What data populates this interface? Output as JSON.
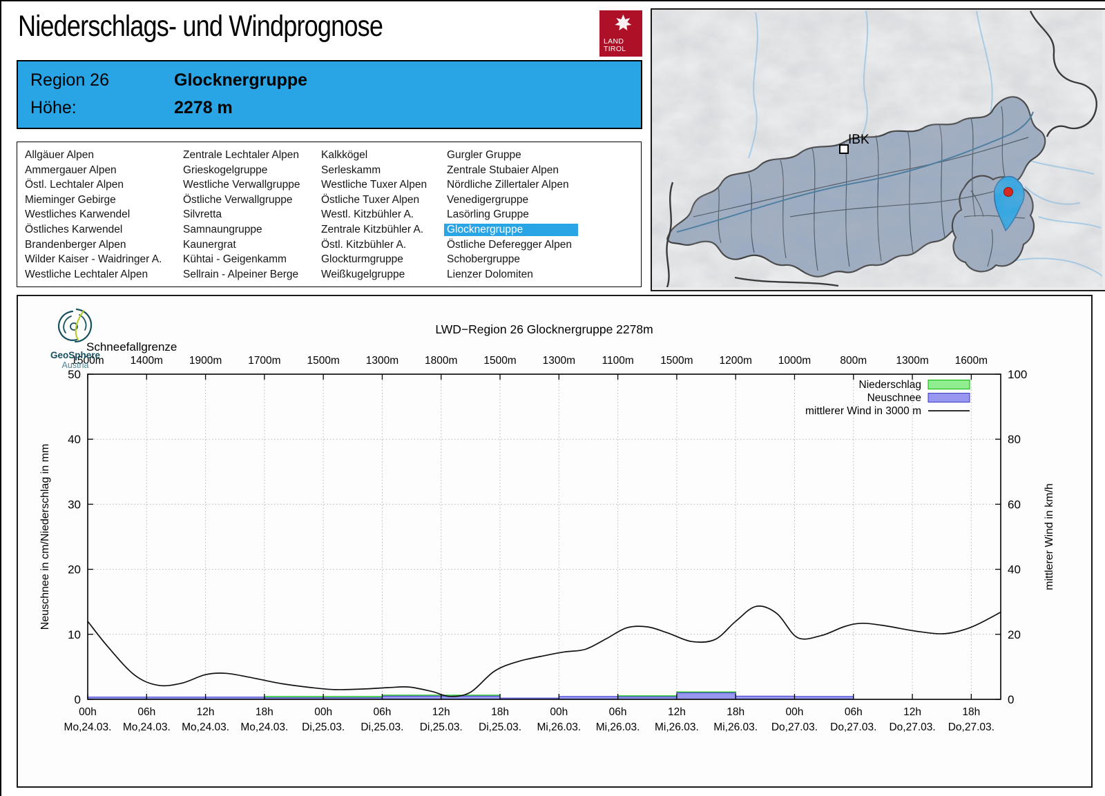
{
  "header": {
    "title": "Niederschlags- und Windprognose",
    "logo_land": "LAND",
    "logo_tirol": "TIROL"
  },
  "info_box": {
    "region_label": "Region 26",
    "region_name": "Glocknergruppe",
    "altitude_label": "Höhe:",
    "altitude_value": "2278 m"
  },
  "region_list": {
    "selected": "Glocknergruppe",
    "columns": [
      [
        "Allgäuer Alpen",
        "Ammergauer Alpen",
        "Östl. Lechtaler Alpen",
        "Mieminger Gebirge",
        "Westliches Karwendel",
        "Östliches Karwendel",
        "Brandenberger Alpen",
        "Wilder Kaiser - Waidringer A.",
        "Westliche Lechtaler Alpen"
      ],
      [
        "Zentrale Lechtaler Alpen",
        "Grieskogelgruppe",
        "Westliche Verwallgruppe",
        "Östliche Verwallgruppe",
        "Silvretta",
        "Samnaungruppe",
        "Kaunergrat",
        "Kühtai - Geigenkamm",
        "Sellrain - Alpeiner Berge"
      ],
      [
        "Kalkkögel",
        "Serleskamm",
        "Westliche Tuxer Alpen",
        "Östliche Tuxer Alpen",
        "Westl. Kitzbühler A.",
        "Zentrale Kitzbühler A.",
        "Östl. Kitzbühler A.",
        "Glockturmgruppe",
        "Weißkugelgruppe"
      ],
      [
        "Gurgler Gruppe",
        "Zentrale Stubaier Alpen",
        "Nördliche Zillertaler Alpen",
        "Venedigergruppe",
        "Lasörling Gruppe",
        "Glocknergruppe",
        "Östliche Deferegger Alpen",
        "Schobergruppe",
        "Lienzer Dolomiten"
      ]
    ]
  },
  "map": {
    "city_label": "IBK"
  },
  "branding": {
    "geosphere_line1": "GeoSphere",
    "geosphere_line2": "Austria"
  },
  "colors": {
    "accent_blue": "#29A5E5",
    "land_tirol_red": "#AE1127",
    "map_land": "#9DACC2",
    "map_selected": "#29A5E5",
    "marker_red": "#D42A20",
    "bar_green_fill": "#90EE90",
    "bar_green_border": "#00B400",
    "bar_blue_fill": "#9797EF",
    "bar_blue_border": "#3A3ACD"
  },
  "chart_data": {
    "type": "bar+line",
    "title": "LWD−Region 26 Glocknergruppe 2278m",
    "snowline_label": "Schneefallgrenze",
    "snowline_values": [
      "1500m",
      "1400m",
      "1900m",
      "1700m",
      "1500m",
      "1300m",
      "1800m",
      "1500m",
      "1300m",
      "1100m",
      "1500m",
      "1200m",
      "1000m",
      "800m",
      "1300m",
      "1600m"
    ],
    "x_tick_hours": [
      "00h",
      "06h",
      "12h",
      "18h",
      "00h",
      "06h",
      "12h",
      "18h",
      "00h",
      "06h",
      "12h",
      "18h",
      "00h",
      "06h",
      "12h",
      "18h"
    ],
    "x_tick_dates": [
      "Mo,24.03.",
      "Mo,24.03.",
      "Mo,24.03.",
      "Mo,24.03.",
      "Di,25.03.",
      "Di,25.03.",
      "Di,25.03.",
      "Di,25.03.",
      "Mi,26.03.",
      "Mi,26.03.",
      "Mi,26.03.",
      "Mi,26.03.",
      "Do,27.03.",
      "Do,27.03.",
      "Do,27.03.",
      "Do,27.03."
    ],
    "x_range_intervals": [
      0,
      15.5
    ],
    "ylabel_left": "Neuschnee in cm/Niederschlag in mm",
    "ylabel_right": "mittlerer Wind in km/h",
    "ylim_left": [
      0,
      50
    ],
    "ylim_right": [
      0,
      100
    ],
    "yticks_left": [
      0,
      10,
      20,
      30,
      40,
      50
    ],
    "yticks_right": [
      0,
      20,
      40,
      60,
      80,
      100
    ],
    "grid": true,
    "legend_position": "top-right",
    "legend": [
      {
        "label": "Niederschlag",
        "swatch": "bar-green"
      },
      {
        "label": "Neuschnee",
        "swatch": "bar-blue"
      },
      {
        "label": "mittlerer Wind in 3000 m",
        "swatch": "line-black"
      }
    ],
    "bars_niederschlag_mm": [
      0,
      0,
      0,
      0.45,
      0.45,
      0.65,
      0.65,
      0,
      0,
      0.55,
      1.15,
      0,
      0,
      0,
      0
    ],
    "bars_neuschnee_cm": [
      0.35,
      0.35,
      0.35,
      0.25,
      0.25,
      0.5,
      0.5,
      0.2,
      0.45,
      0.4,
      1.0,
      0.5,
      0.45,
      0,
      0
    ],
    "wind_kmh_points": {
      "t": [
        0,
        0.35,
        0.8,
        1.2,
        1.6,
        2.0,
        2.35,
        2.8,
        3.3,
        3.8,
        4.2,
        4.7,
        5.1,
        5.45,
        5.85,
        6.15,
        6.5,
        6.9,
        7.3,
        7.8,
        8.1,
        8.45,
        8.8,
        9.15,
        9.5,
        9.85,
        10.25,
        10.65,
        11.0,
        11.35,
        11.7,
        12.05,
        12.45,
        12.85,
        13.15,
        13.55,
        14.05,
        14.55,
        15.0,
        15.5
      ],
      "v": [
        24,
        16,
        7.4,
        4.3,
        5.0,
        7.6,
        8.0,
        6.6,
        4.8,
        3.6,
        3.0,
        3.2,
        3.6,
        3.8,
        2.4,
        0.9,
        2.2,
        8.6,
        11.6,
        13.6,
        14.6,
        15.4,
        18.6,
        22.0,
        22.3,
        20.4,
        17.8,
        18.4,
        24.0,
        28.6,
        26.4,
        19.0,
        19.6,
        22.4,
        23.4,
        22.6,
        21.0,
        20.2,
        22.2,
        26.8
      ]
    }
  }
}
